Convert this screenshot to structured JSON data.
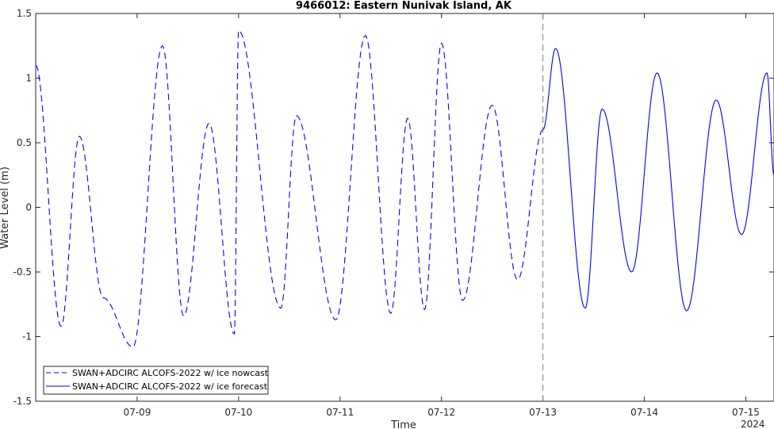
{
  "chart_data": {
    "type": "line",
    "title": "9466012: Eastern Nunivak Island, AK",
    "xlabel": "Time",
    "ylabel": "Water Level (m)",
    "ylim": [
      -1.5,
      1.5
    ],
    "xlim": [
      "2024-07-08T00:00",
      "2024-07-15T06:40"
    ],
    "yticks": [
      "-1.5",
      "-1",
      "-0.5",
      "0",
      "0.5",
      "1",
      "1.5"
    ],
    "xticks": [
      "07-09",
      "07-10",
      "07-11",
      "07-12",
      "07-13",
      "07-14",
      "07-15"
    ],
    "year_label": "2024",
    "nowcast_end_marker": "2024-07-13T00:00",
    "grid": false,
    "legend_position": "bottom-left",
    "series": [
      {
        "name": "SWAN+ADCIRC ALCOFS-2022 w/ ice nowcast",
        "style": "dashed",
        "color": "#0000ff",
        "points": [
          [
            "2024-07-08T00:00",
            1.1
          ],
          [
            "2024-07-08T06:00",
            -0.92
          ],
          [
            "2024-07-08T10:20",
            0.55
          ],
          [
            "2024-07-08T16:00",
            -0.7
          ],
          [
            "2024-07-08T23:00",
            -1.08
          ],
          [
            "2024-07-09T06:00",
            1.25
          ],
          [
            "2024-07-09T11:00",
            -0.84
          ],
          [
            "2024-07-09T17:00",
            0.65
          ],
          [
            "2024-07-09T23:00",
            -0.98
          ],
          [
            "2024-07-10T00:00",
            1.37
          ],
          [
            "2024-07-10T10:00",
            -0.78
          ],
          [
            "2024-07-10T13:40",
            0.71
          ],
          [
            "2024-07-10T23:00",
            -0.87
          ],
          [
            "2024-07-11T06:00",
            1.33
          ],
          [
            "2024-07-11T12:00",
            -0.82
          ],
          [
            "2024-07-11T16:00",
            0.69
          ],
          [
            "2024-07-11T20:00",
            -0.79
          ],
          [
            "2024-07-12T00:00",
            1.27
          ],
          [
            "2024-07-12T05:00",
            -0.72
          ],
          [
            "2024-07-12T12:00",
            0.79
          ],
          [
            "2024-07-12T18:00",
            -0.56
          ],
          [
            "2024-07-13T00:00",
            0.6
          ]
        ]
      },
      {
        "name": "SWAN+ADCIRC ALCOFS-2022 w/ ice forecast",
        "style": "solid",
        "color": "#0000ff",
        "points": [
          [
            "2024-07-13T00:00",
            0.6
          ],
          [
            "2024-07-13T03:00",
            1.23
          ],
          [
            "2024-07-13T10:00",
            -0.78
          ],
          [
            "2024-07-13T14:00",
            0.76
          ],
          [
            "2024-07-13T21:00",
            -0.5
          ],
          [
            "2024-07-14T03:00",
            1.04
          ],
          [
            "2024-07-14T10:00",
            -0.8
          ],
          [
            "2024-07-14T17:00",
            0.83
          ],
          [
            "2024-07-14T23:00",
            -0.21
          ],
          [
            "2024-07-15T05:00",
            1.04
          ],
          [
            "2024-07-15T06:40",
            0.25
          ]
        ]
      }
    ]
  }
}
